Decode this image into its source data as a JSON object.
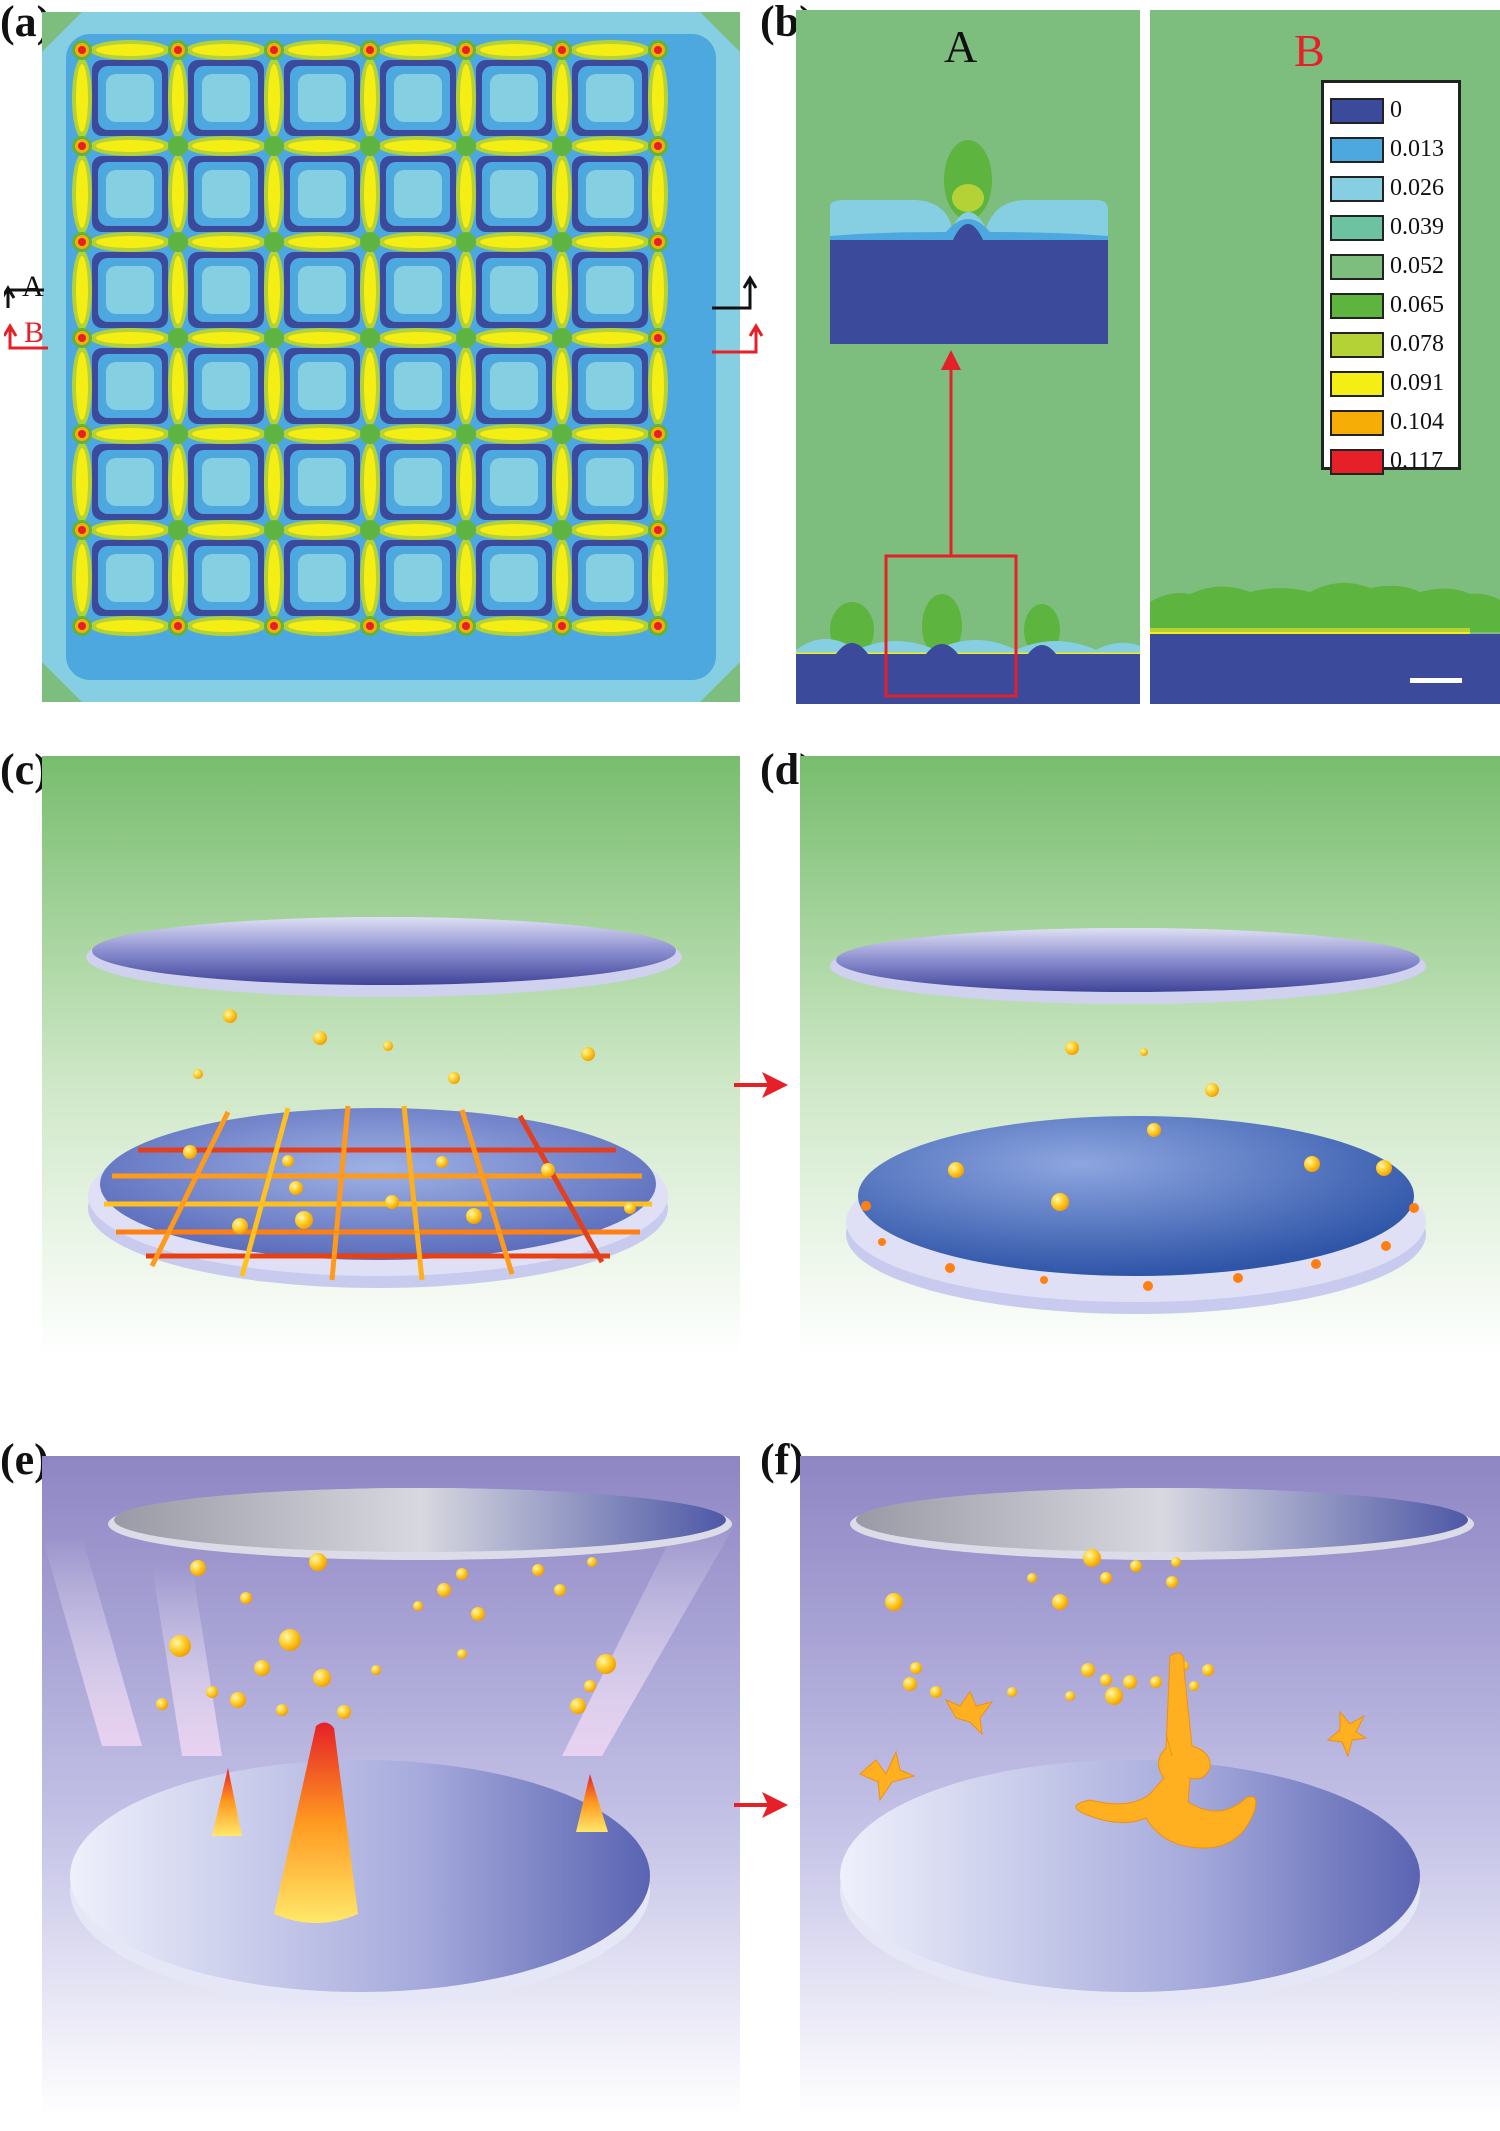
{
  "panels": {
    "a": {
      "label": "(a)",
      "marker_A": "A",
      "marker_B": "B"
    },
    "b": {
      "label": "(b)",
      "section_A": "A",
      "section_B": "B"
    },
    "c": {
      "label": "(c)"
    },
    "d": {
      "label": "(d)"
    },
    "e": {
      "label": "(e)"
    },
    "f": {
      "label": "(f)"
    }
  },
  "legend": {
    "items": [
      {
        "value": "0",
        "color": "#3b4a9b"
      },
      {
        "value": "0.013",
        "color": "#4da8df"
      },
      {
        "value": "0.026",
        "color": "#86cfe3"
      },
      {
        "value": "0.039",
        "color": "#6cc3a2"
      },
      {
        "value": "0.052",
        "color": "#7dbe7e"
      },
      {
        "value": "0.065",
        "color": "#5db53f"
      },
      {
        "value": "0.078",
        "color": "#b4d236"
      },
      {
        "value": "0.091",
        "color": "#f4ee14"
      },
      {
        "value": "0.104",
        "color": "#f6ae06"
      },
      {
        "value": "0.117",
        "color": "#e52028"
      }
    ]
  },
  "colors": {
    "field_green": "#7dbe7e",
    "substrate_blue": "#3b4a9b",
    "arrow_red": "#e52028",
    "marker_black": "#111111"
  }
}
